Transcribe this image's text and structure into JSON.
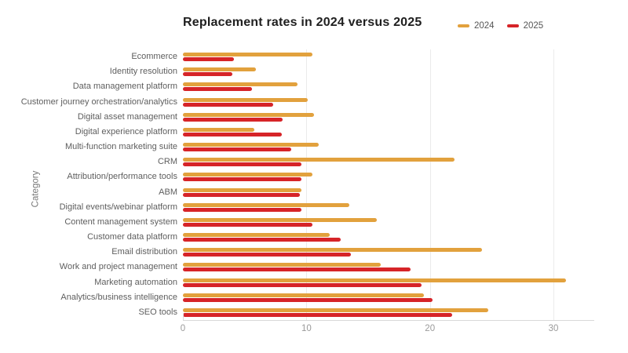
{
  "chart": {
    "title": "Replacement rates in 2024 versus 2025",
    "y_axis_title": "Category",
    "legend": [
      {
        "label": "2024",
        "color": "#E2A13D"
      },
      {
        "label": "2025",
        "color": "#D62428"
      }
    ]
  },
  "chart_data": {
    "type": "bar",
    "orientation": "horizontal",
    "title": "Replacement rates in 2024 versus 2025",
    "xlabel": "",
    "ylabel": "Category",
    "grid": true,
    "legend_position": "top-right",
    "xlim": [
      0,
      33.3
    ],
    "xticks": [
      0,
      10,
      20,
      30
    ],
    "categories": [
      "Ecommerce",
      "Identity resolution",
      "Data management platform",
      "Customer journey orchestration/analytics",
      "Digital asset management",
      "Digital experience platform",
      "Multi-function marketing suite",
      "CRM",
      "Attribution/performance tools",
      "ABM",
      "Digital events/webinar platform",
      "Content management system",
      "Customer data platform",
      "Email distribution",
      "Work and project management",
      "Marketing automation",
      "Analytics/business intelligence",
      "SEO tools"
    ],
    "series": [
      {
        "name": "2024",
        "color": "#E2A13D",
        "values": [
          10.5,
          5.9,
          9.3,
          10.1,
          10.6,
          5.8,
          11.0,
          22.0,
          10.5,
          9.6,
          13.5,
          15.7,
          11.9,
          24.2,
          16.0,
          31.0,
          19.5,
          24.7
        ]
      },
      {
        "name": "2025",
        "color": "#D62428",
        "values": [
          4.1,
          4.0,
          5.6,
          7.3,
          8.1,
          8.0,
          8.8,
          9.6,
          9.6,
          9.5,
          9.6,
          10.5,
          12.8,
          13.6,
          18.4,
          19.3,
          20.2,
          21.8
        ]
      }
    ]
  }
}
